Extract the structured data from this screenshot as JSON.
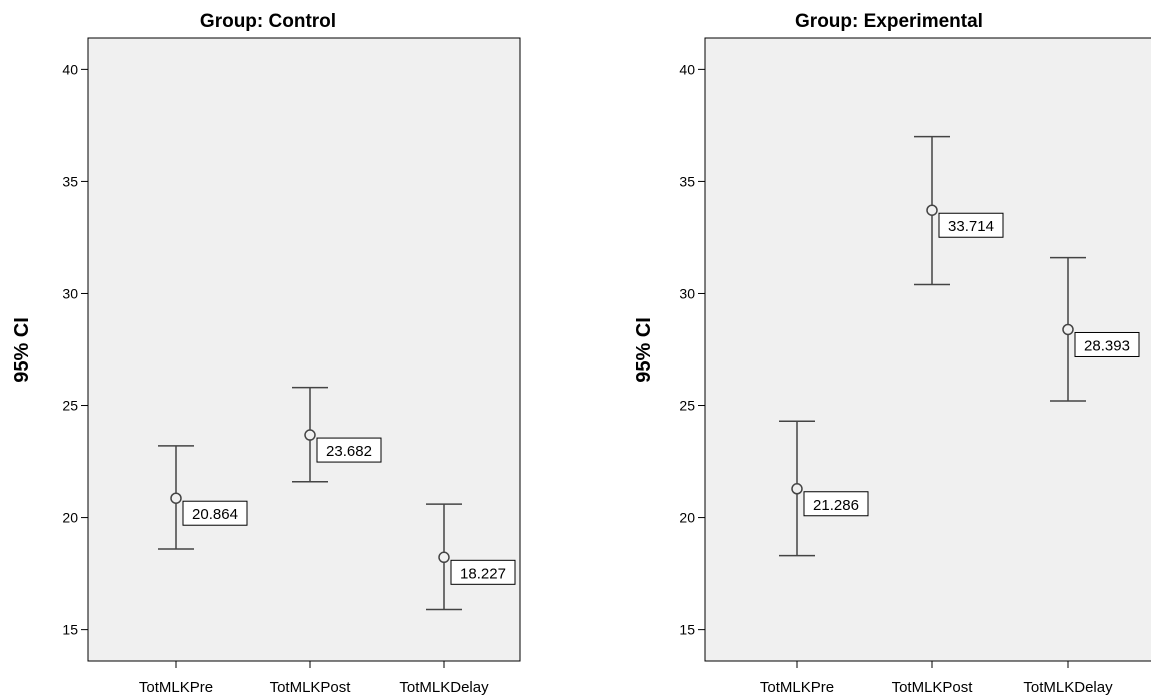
{
  "chart_data": [
    {
      "type": "errorbar",
      "title": "Group: Control",
      "ylabel": "95% CI",
      "categories": [
        "TotMLKPre",
        "TotMLKPost",
        "TotMLKDelay"
      ],
      "means": [
        20.864,
        23.682,
        18.227
      ],
      "mean_labels": [
        "20.864",
        "23.682",
        "18.227"
      ],
      "ci_lower": [
        18.6,
        21.6,
        15.9
      ],
      "ci_upper": [
        23.2,
        25.8,
        20.6
      ],
      "ylim": [
        13.6,
        41.4
      ],
      "yticks": [
        15,
        20,
        25,
        30,
        35,
        40
      ],
      "grid": false,
      "plot_background": "#f0f0f0"
    },
    {
      "type": "errorbar",
      "title": "Group: Experimental",
      "ylabel": "95% CI",
      "categories": [
        "TotMLKPre",
        "TotMLKPost",
        "TotMLKDelay"
      ],
      "means": [
        21.286,
        33.714,
        28.393
      ],
      "mean_labels": [
        "21.286",
        "33.714",
        "28.393"
      ],
      "ci_lower": [
        18.3,
        30.4,
        25.2
      ],
      "ci_upper": [
        24.3,
        37.0,
        31.6
      ],
      "ylim": [
        13.6,
        41.4
      ],
      "yticks": [
        15,
        20,
        25,
        30,
        35,
        40
      ],
      "grid": false,
      "plot_background": "#f0f0f0"
    }
  ]
}
